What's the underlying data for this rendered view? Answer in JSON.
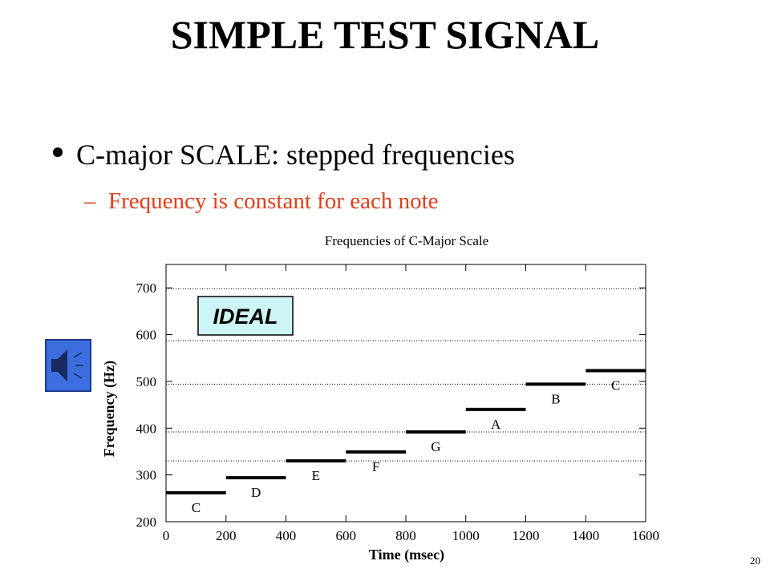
{
  "slide": {
    "title": "SIMPLE TEST SIGNAL",
    "bullet": "C-major SCALE: stepped frequencies",
    "sub_bullet": "Frequency is constant for each note",
    "page_number": "20"
  },
  "chart_data": {
    "type": "step",
    "title": "Frequencies of C-Major Scale",
    "x_label": "Time (msec)",
    "y_label": "Frequency (Hz)",
    "bins": [
      0,
      200,
      400,
      600,
      800,
      1000,
      1200,
      1400,
      1600
    ],
    "values": [
      262,
      294,
      330,
      349,
      392,
      440,
      494,
      523
    ],
    "labels": [
      "C",
      "D",
      "E",
      "F",
      "G",
      "A",
      "B",
      "C"
    ],
    "color": "#000000",
    "reference_lines": [
      330,
      392,
      494,
      587,
      698
    ],
    "annotation": "IDEAL",
    "xlim": [
      0,
      1600
    ],
    "xticks": [
      0,
      200,
      400,
      600,
      800,
      1000,
      1200,
      1400,
      1600
    ],
    "ylim": [
      200,
      750
    ],
    "yticks": [
      200,
      300,
      400,
      500,
      600,
      700
    ]
  }
}
